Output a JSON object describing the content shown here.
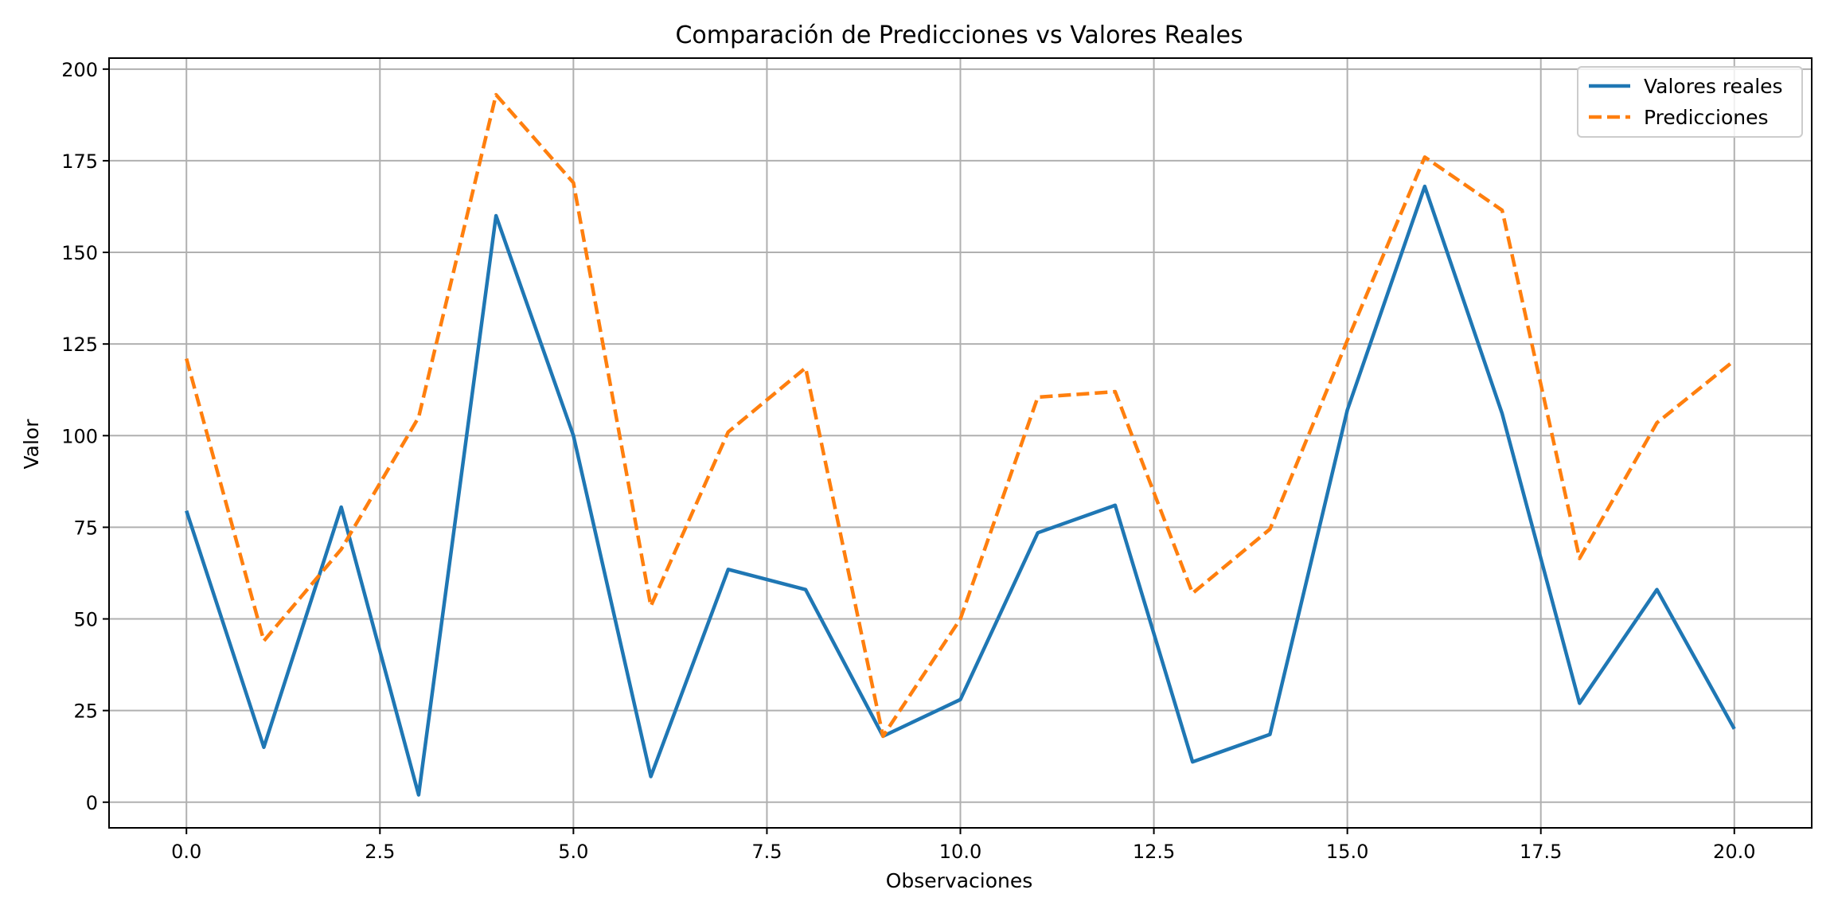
{
  "chart_data": {
    "type": "line",
    "title": "Comparación de Predicciones vs Valores Reales",
    "xlabel": "Observaciones",
    "ylabel": "Valor",
    "xlim": [
      -1,
      21
    ],
    "ylim": [
      -7,
      203
    ],
    "grid": true,
    "legend_position": "top-right",
    "x": [
      0,
      1,
      2,
      3,
      4,
      5,
      6,
      7,
      8,
      9,
      10,
      11,
      12,
      13,
      14,
      15,
      16,
      17,
      18,
      19,
      20
    ],
    "xticks": [
      "0.0",
      "2.5",
      "5.0",
      "7.5",
      "10.0",
      "12.5",
      "15.0",
      "17.5",
      "20.0"
    ],
    "xtick_values": [
      0,
      2.5,
      5,
      7.5,
      10,
      12.5,
      15,
      17.5,
      20
    ],
    "yticks": [
      "0",
      "25",
      "50",
      "75",
      "100",
      "125",
      "150",
      "175",
      "200"
    ],
    "ytick_values": [
      0,
      25,
      50,
      75,
      100,
      125,
      150,
      175,
      200
    ],
    "series": [
      {
        "name": "Valores reales",
        "style": "solid",
        "color": "#1f77b4",
        "values": [
          79.5,
          15,
          80.5,
          2,
          160,
          100,
          7,
          63.5,
          58,
          18,
          28,
          73.5,
          81,
          11,
          18.5,
          107,
          168,
          106,
          27,
          58,
          20
        ]
      },
      {
        "name": "Predicciones",
        "style": "dashed",
        "color": "#ff7f0e",
        "values": [
          121,
          44,
          69,
          105,
          193,
          169,
          53.5,
          101,
          118.5,
          18,
          50,
          110.5,
          112,
          57,
          74.5,
          126,
          176,
          161.5,
          66.5,
          103.5,
          120.5
        ]
      }
    ]
  }
}
